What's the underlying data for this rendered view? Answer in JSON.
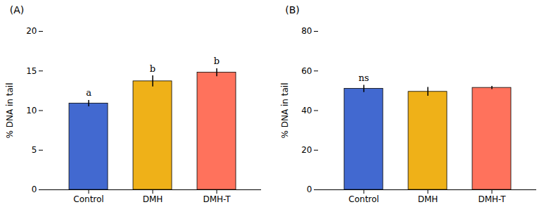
{
  "chart_data": [
    {
      "type": "bar",
      "title": "(A)",
      "categories": [
        "Control",
        "DMH",
        "DMH-T"
      ],
      "values": [
        10.9,
        13.7,
        14.8
      ],
      "errors": [
        0.4,
        0.7,
        0.5
      ],
      "ylim": [
        0,
        20
      ],
      "yticks": [
        0,
        5,
        10,
        15,
        20
      ],
      "ylabel": "% DNA in tail",
      "annotations": [
        {
          "x": "Control",
          "text": "a"
        },
        {
          "x": "DMH",
          "text": "b"
        },
        {
          "x": "DMH-T",
          "text": "b"
        }
      ]
    },
    {
      "type": "bar",
      "title": "(B)",
      "categories": [
        "Control",
        "DMH",
        "DMH-T"
      ],
      "values": [
        51.0,
        49.5,
        51.5
      ],
      "errors": [
        1.8,
        2.2,
        0.8
      ],
      "ylim": [
        0,
        80
      ],
      "yticks": [
        0,
        20,
        40,
        60,
        80
      ],
      "ylabel": "% DNA in tail",
      "annotations": [
        {
          "x": "Control",
          "text": "ns"
        }
      ]
    }
  ]
}
